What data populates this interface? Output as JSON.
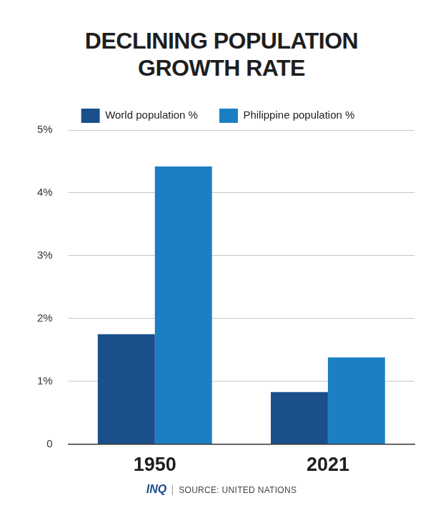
{
  "chart_data": {
    "type": "bar",
    "title": "DECLINING POPULATION GROWTH RATE",
    "categories": [
      "1950",
      "2021"
    ],
    "series": [
      {
        "name": "World population %",
        "color": "#1a4f8b",
        "values": [
          1.75,
          0.83
        ]
      },
      {
        "name": "Philippine population %",
        "color": "#1b80c3",
        "values": [
          4.42,
          1.38
        ]
      }
    ],
    "ylim": [
      0,
      5
    ],
    "yticks": [
      0,
      {
        "value": 1,
        "label": "1%"
      },
      {
        "value": 2,
        "label": "2%"
      },
      {
        "value": 3,
        "label": "3%"
      },
      {
        "value": 4,
        "label": "4%"
      },
      {
        "value": 5,
        "label": "5%"
      }
    ],
    "grid": true,
    "legend": "top",
    "annotations": [
      "INQ",
      "SOURCE: UNITED NATIONS"
    ]
  }
}
